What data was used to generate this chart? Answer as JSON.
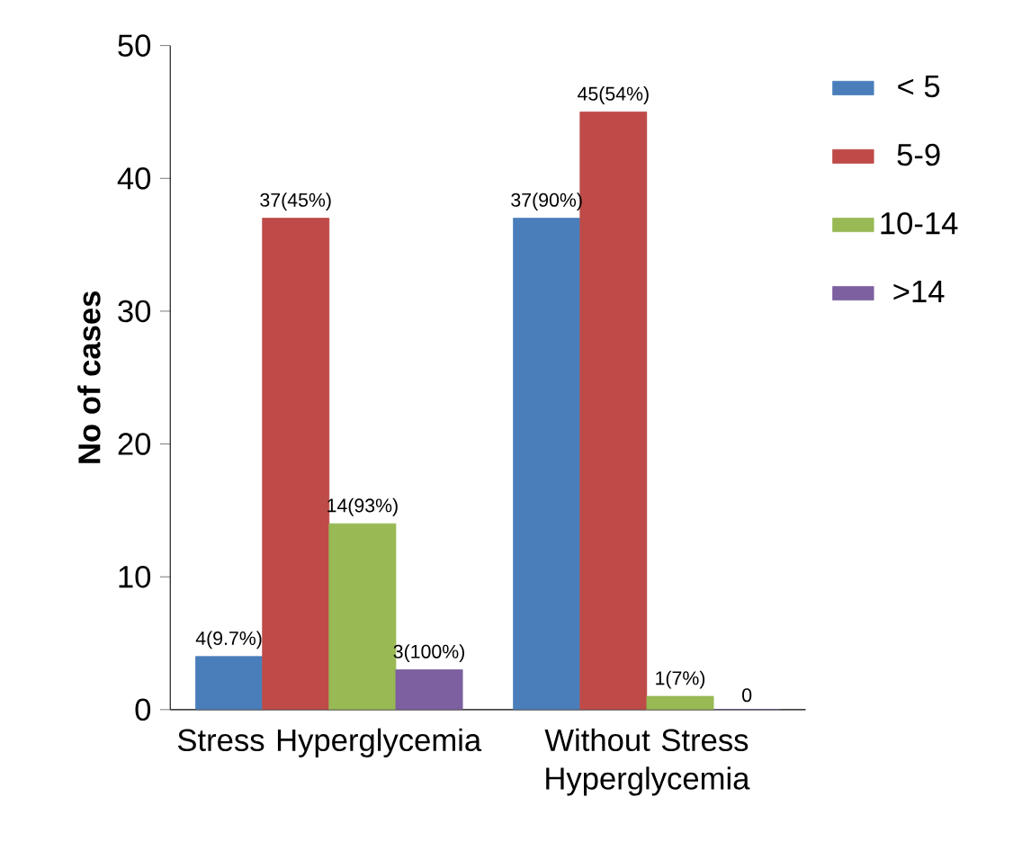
{
  "chart_data": {
    "type": "bar",
    "ylabel": "No of cases",
    "categories": [
      "Stress Hyperglycemia",
      "Without Stress Hyperglycemia"
    ],
    "series": [
      {
        "name": "< 5",
        "color": "#4a7ebb",
        "values": [
          4,
          37
        ],
        "value_labels": [
          "4(9.7%)",
          "37(90%)"
        ]
      },
      {
        "name": "5-9",
        "color": "#be4b48",
        "values": [
          37,
          45
        ],
        "value_labels": [
          "37(45%)",
          "45(54%)"
        ]
      },
      {
        "name": "10-14",
        "color": "#98b954",
        "values": [
          14,
          1
        ],
        "value_labels": [
          "14(93%)",
          "1(7%)"
        ]
      },
      {
        "name": ">14",
        "color": "#7d60a0",
        "values": [
          3,
          0
        ],
        "value_labels": [
          "3(100%)",
          "0"
        ]
      }
    ],
    "ylim": [
      0,
      50
    ],
    "yticks": [
      0,
      10,
      20,
      30,
      40,
      50
    ],
    "grid": false,
    "legend": "right"
  }
}
